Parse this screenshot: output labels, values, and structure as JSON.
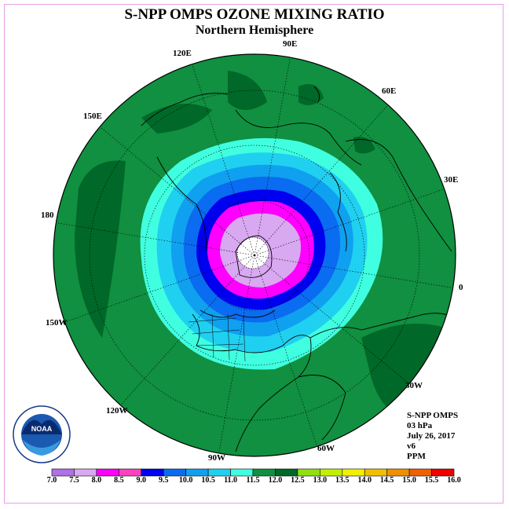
{
  "title": "S-NPP OMPS OZONE MIXING RATIO",
  "subtitle": "Northern Hemisphere",
  "longitude_labels": [
    "90E",
    "60E",
    "30E",
    "0",
    "30W",
    "60W",
    "90W",
    "120W",
    "150W",
    "180",
    "150E",
    "120E"
  ],
  "info": {
    "instrument": "S-NPP OMPS",
    "pressure": "03 hPa",
    "date": "July 26, 2017",
    "version": "v6",
    "units": "PPM"
  },
  "logo_text": "NATIONAL OCEANIC AND ATMOSPHERIC ADMINISTRATION · U.S. DEPARTMENT OF COMMERCE · NOAA",
  "colorbar": {
    "ticks": [
      "7.0",
      "7.5",
      "8.0",
      "8.5",
      "9.0",
      "9.5",
      "10.0",
      "10.5",
      "11.0",
      "11.5",
      "12.0",
      "12.5",
      "13.0",
      "13.5",
      "14.0",
      "14.5",
      "15.0",
      "15.5",
      "16.0"
    ],
    "colors": [
      "#b070e8",
      "#d8a8f0",
      "#ff00ff",
      "#ff40c0",
      "#0000f0",
      "#0a6cf0",
      "#10a0f0",
      "#20d0f0",
      "#40ffe0",
      "#109040",
      "#006828",
      "#90e010",
      "#c0f000",
      "#f0f000",
      "#f0c000",
      "#f09000",
      "#f06000",
      "#f00000",
      "#804020"
    ]
  },
  "chart_data": {
    "type": "map",
    "projection": "north-polar-stereographic",
    "variable": "ozone mixing ratio",
    "units": "PPM",
    "pressure_level": "03 hPa",
    "levels": [
      7.0,
      7.5,
      8.0,
      8.5,
      9.0,
      9.5,
      10.0,
      10.5,
      11.0,
      11.5,
      12.0,
      12.5,
      13.0,
      13.5,
      14.0,
      14.5,
      15.0,
      15.5,
      16.0
    ]
  }
}
